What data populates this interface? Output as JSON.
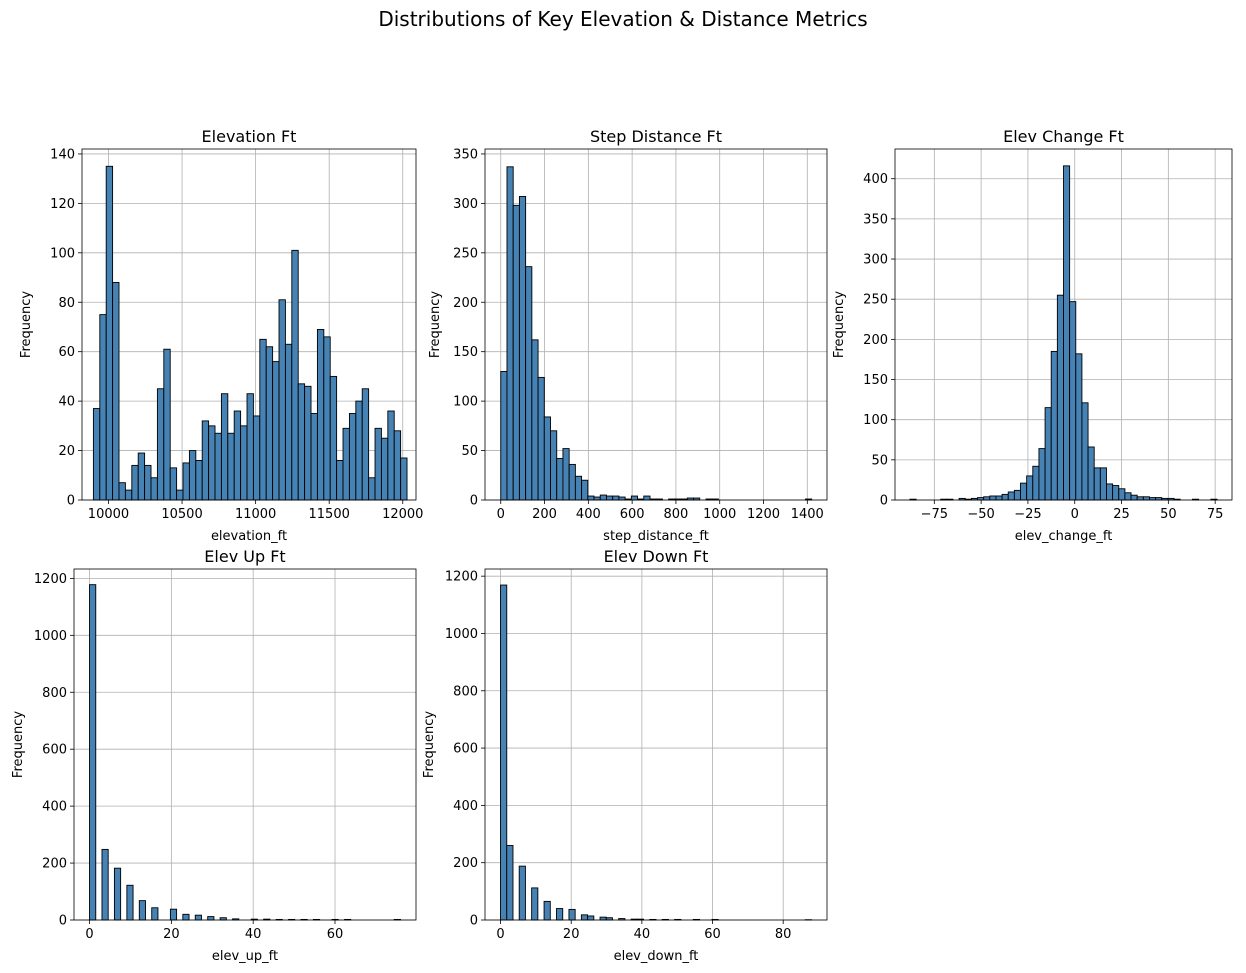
{
  "figure": {
    "suptitle": "Distributions of Key Elevation & Distance Metrics"
  },
  "style": {
    "bar_fill": "#4682b4",
    "bar_edge": "#000000",
    "grid": "#b0b0b0"
  },
  "chart_data": [
    {
      "type": "bar",
      "title": "Elevation Ft",
      "xlabel": "elevation_ft",
      "ylabel": "Frequency",
      "grid": true,
      "xlim": [
        9820,
        12090
      ],
      "ylim": [
        0,
        142
      ],
      "xticks": [
        10000,
        10500,
        11000,
        11500,
        12000
      ],
      "yticks": [
        0,
        20,
        40,
        60,
        80,
        100,
        120,
        140
      ],
      "bin_start": 9897.5,
      "bin_width": 43.5,
      "values": [
        37,
        75,
        135,
        88,
        7,
        4,
        14,
        19,
        14,
        9,
        45,
        61,
        13,
        4,
        15,
        20,
        16,
        32,
        30,
        27,
        43,
        27,
        36,
        30,
        43,
        34,
        65,
        62,
        56,
        81,
        63,
        101,
        47,
        46,
        35,
        69,
        66,
        50,
        16,
        29,
        35,
        40,
        45,
        9,
        29,
        25,
        36,
        28,
        17
      ]
    },
    {
      "type": "bar",
      "title": "Step Distance Ft",
      "xlabel": "step_distance_ft",
      "ylabel": "Frequency",
      "grid": true,
      "xlim": [
        -72,
        1490
      ],
      "ylim": [
        0,
        355
      ],
      "xticks": [
        0,
        200,
        400,
        600,
        800,
        1000,
        1200,
        1400
      ],
      "yticks": [
        0,
        50,
        100,
        150,
        200,
        250,
        300,
        350
      ],
      "bin_start": 0,
      "bin_width": 28.4,
      "values": [
        130,
        337,
        298,
        307,
        236,
        162,
        124,
        84,
        70,
        42,
        52,
        36,
        24,
        20,
        4,
        3,
        5,
        4,
        4,
        3,
        1,
        4,
        1,
        4,
        1,
        1,
        0,
        1,
        1,
        1,
        2,
        2,
        0,
        1,
        1,
        0,
        0,
        0,
        0,
        0,
        0,
        0,
        0,
        0,
        0,
        0,
        0,
        0,
        0,
        1
      ]
    },
    {
      "type": "bar",
      "title": "Elev Change Ft",
      "xlabel": "elev_change_ft",
      "ylabel": "Frequency",
      "grid": true,
      "xlim": [
        -96,
        84
      ],
      "ylim": [
        0,
        437
      ],
      "xticks": [
        -75,
        -50,
        -25,
        0,
        25,
        50,
        75
      ],
      "yticks": [
        0,
        50,
        100,
        150,
        200,
        250,
        300,
        350,
        400
      ],
      "bin_start": -88,
      "bin_width": 3.28,
      "values": [
        1,
        0,
        0,
        0,
        0,
        1,
        1,
        0,
        2,
        1,
        2,
        3,
        4,
        5,
        5,
        7,
        10,
        12,
        21,
        30,
        42,
        64,
        115,
        185,
        255,
        416,
        247,
        182,
        121,
        66,
        40,
        40,
        20,
        18,
        14,
        9,
        6,
        4,
        4,
        3,
        3,
        2,
        2,
        1,
        0,
        0,
        1,
        0,
        0,
        1
      ]
    },
    {
      "type": "bar",
      "title": "Elev Up Ft",
      "xlabel": "elev_up_ft",
      "ylabel": "Frequency",
      "grid": true,
      "xlim": [
        -3.8,
        79.8
      ],
      "ylim": [
        0,
        1233
      ],
      "xticks": [
        0,
        20,
        40,
        60
      ],
      "yticks": [
        0,
        200,
        400,
        600,
        800,
        1000,
        1200
      ],
      "bin_start": 0,
      "bin_width": 1.52,
      "values": [
        1178,
        0,
        248,
        0,
        182,
        0,
        122,
        0,
        68,
        0,
        43,
        0,
        0,
        38,
        0,
        20,
        0,
        17,
        0,
        12,
        0,
        8,
        0,
        4,
        0,
        0,
        3,
        0,
        3,
        0,
        2,
        0,
        2,
        0,
        2,
        0,
        2,
        0,
        0,
        2,
        0,
        2,
        0,
        0,
        0,
        0,
        0,
        0,
        0,
        2
      ]
    },
    {
      "type": "bar",
      "title": "Elev Down Ft",
      "xlabel": "elev_down_ft",
      "ylabel": "Frequency",
      "grid": true,
      "xlim": [
        -4.4,
        92.4
      ],
      "ylim": [
        0,
        1225
      ],
      "xticks": [
        0,
        20,
        40,
        60,
        80
      ],
      "yticks": [
        0,
        200,
        400,
        600,
        800,
        1000,
        1200
      ],
      "bin_start": 0,
      "bin_width": 1.76,
      "values": [
        1169,
        260,
        0,
        188,
        0,
        112,
        0,
        65,
        0,
        40,
        0,
        37,
        0,
        18,
        14,
        0,
        10,
        8,
        0,
        5,
        0,
        3,
        3,
        0,
        2,
        0,
        2,
        0,
        2,
        0,
        0,
        2,
        0,
        0,
        2,
        0,
        0,
        0,
        0,
        0,
        0,
        0,
        0,
        0,
        0,
        0,
        0,
        0,
        0,
        1
      ]
    }
  ]
}
